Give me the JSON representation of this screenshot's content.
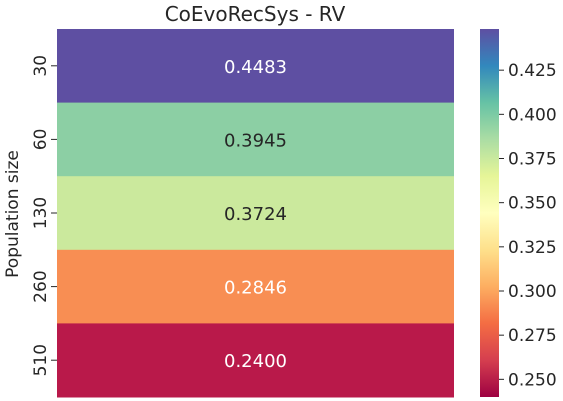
{
  "chart_data": {
    "type": "heatmap",
    "title": "CoEvoRecSys - RV",
    "xlabel": "",
    "ylabel": "Population size",
    "rows": [
      "30",
      "60",
      "130",
      "260",
      "510"
    ],
    "values": [
      0.4483,
      0.3945,
      0.3724,
      0.2846,
      0.24
    ],
    "value_labels": [
      "0.4483",
      "0.3945",
      "0.3724",
      "0.2846",
      "0.2400"
    ],
    "cell_colors": [
      "#5e4fa2",
      "#8ccfa4",
      "#cbe99d",
      "#f88e53",
      "#b9194a"
    ],
    "label_colors": [
      "#ffffff",
      "#262626",
      "#262626",
      "#ffffff",
      "#ffffff"
    ],
    "colormap": "Spectral",
    "colorbar": {
      "range": [
        0.24,
        0.4483
      ],
      "ticks": [
        0.25,
        0.275,
        0.3,
        0.325,
        0.35,
        0.375,
        0.4,
        0.425
      ],
      "tick_labels": [
        "0.250",
        "0.275",
        "0.300",
        "0.325",
        "0.350",
        "0.375",
        "0.400",
        "0.425"
      ]
    }
  }
}
